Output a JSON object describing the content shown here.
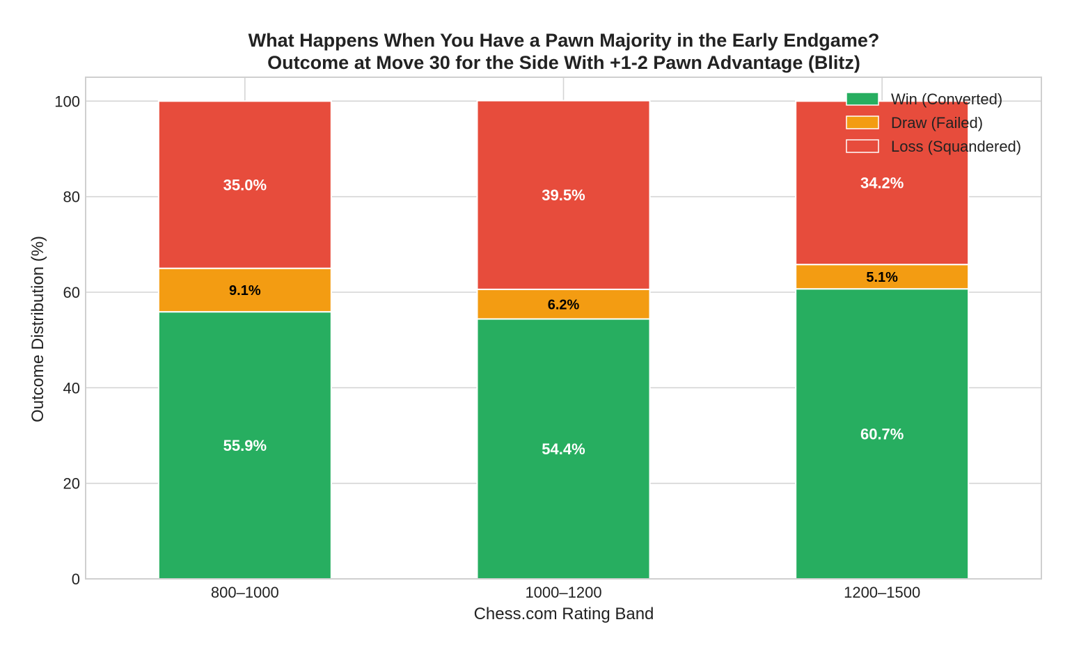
{
  "chart_data": {
    "type": "bar",
    "stacked": true,
    "title": "What Happens When You Have a Pawn Majority in the Early Endgame?",
    "subtitle": "Outcome at Move 30 for the Side With +1-2 Pawn Advantage (Blitz)",
    "xlabel": "Chess.com Rating Band",
    "ylabel": "Outcome Distribution (%)",
    "categories": [
      "800–1000",
      "1000–1200",
      "1200–1500"
    ],
    "ylim": [
      0,
      105
    ],
    "yticks": [
      0,
      20,
      40,
      60,
      80,
      100
    ],
    "grid": true,
    "legend_position": "top-right",
    "series": [
      {
        "name": "Win (Converted)",
        "color": "#27ae60",
        "label_color": "#ffffff",
        "values": [
          55.9,
          54.4,
          60.7
        ],
        "labels": [
          "55.9%",
          "54.4%",
          "60.7%"
        ]
      },
      {
        "name": "Draw (Failed)",
        "color": "#f39c12",
        "label_color": "#000000",
        "values": [
          9.1,
          6.2,
          5.1
        ],
        "labels": [
          "9.1%",
          "6.2%",
          "5.1%"
        ]
      },
      {
        "name": "Loss (Squandered)",
        "color": "#e74c3c",
        "label_color": "#ffffff",
        "values": [
          35.0,
          39.5,
          34.2
        ],
        "labels": [
          "35.0%",
          "39.5%",
          "34.2%"
        ]
      }
    ]
  }
}
